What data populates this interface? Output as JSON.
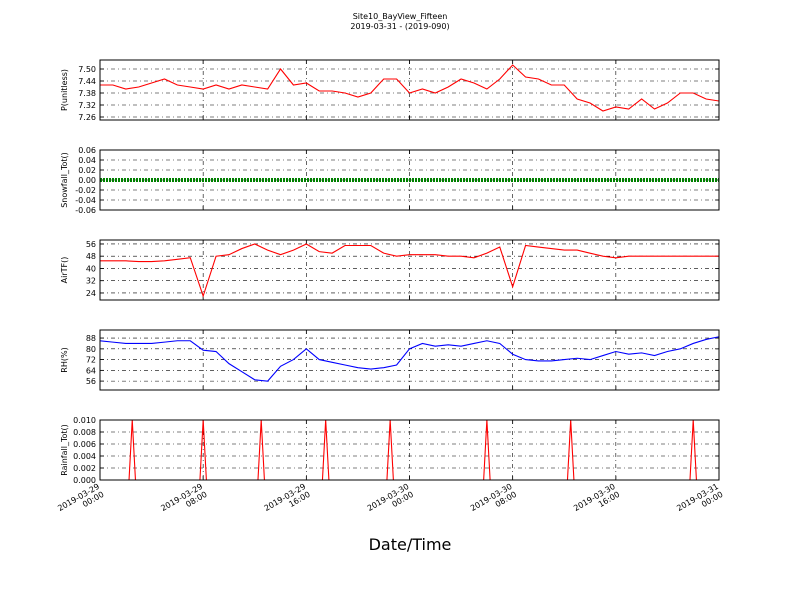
{
  "chart_data": [
    {
      "type": "line",
      "title": "Site10_BayView_Fifteen",
      "subtitle": "2019-03-31 - (2019-090)",
      "ylabel": "P(unitless)",
      "color": "#ff0000",
      "x": [
        "2019-03-29 00:00",
        "2019-03-29 01:00",
        "2019-03-29 02:00",
        "2019-03-29 03:00",
        "2019-03-29 04:00",
        "2019-03-29 05:00",
        "2019-03-29 06:00",
        "2019-03-29 07:00",
        "2019-03-29 08:00",
        "2019-03-29 09:00",
        "2019-03-29 10:00",
        "2019-03-29 11:00",
        "2019-03-29 12:00",
        "2019-03-29 13:00",
        "2019-03-29 14:00",
        "2019-03-29 15:00",
        "2019-03-29 16:00",
        "2019-03-29 17:00",
        "2019-03-29 18:00",
        "2019-03-29 19:00",
        "2019-03-29 20:00",
        "2019-03-29 21:00",
        "2019-03-29 22:00",
        "2019-03-29 23:00",
        "2019-03-30 00:00",
        "2019-03-30 01:00",
        "2019-03-30 02:00",
        "2019-03-30 03:00",
        "2019-03-30 04:00",
        "2019-03-30 05:00",
        "2019-03-30 06:00",
        "2019-03-30 07:00",
        "2019-03-30 08:00",
        "2019-03-30 09:00",
        "2019-03-30 10:00",
        "2019-03-30 11:00",
        "2019-03-30 12:00",
        "2019-03-30 13:00",
        "2019-03-30 14:00",
        "2019-03-30 15:00",
        "2019-03-30 16:00",
        "2019-03-30 17:00",
        "2019-03-30 18:00",
        "2019-03-30 19:00",
        "2019-03-30 20:00",
        "2019-03-30 21:00",
        "2019-03-30 22:00",
        "2019-03-30 23:00",
        "2019-03-31 00:00"
      ],
      "values": [
        7.42,
        7.42,
        7.4,
        7.41,
        7.43,
        7.45,
        7.42,
        7.41,
        7.4,
        7.42,
        7.4,
        7.42,
        7.41,
        7.4,
        7.5,
        7.42,
        7.43,
        7.39,
        7.39,
        7.38,
        7.36,
        7.38,
        7.45,
        7.45,
        7.38,
        7.4,
        7.38,
        7.41,
        7.45,
        7.43,
        7.4,
        7.45,
        7.52,
        7.46,
        7.45,
        7.42,
        7.42,
        7.35,
        7.33,
        7.29,
        7.31,
        7.3,
        7.35,
        7.3,
        7.33,
        7.38,
        7.38,
        7.35,
        7.34
      ],
      "xlim": [
        "2019-03-29 00:00",
        "2019-03-31 00:00"
      ],
      "xticks": [
        "2019-03-29 00:00",
        "2019-03-29 08:00",
        "2019-03-29 16:00",
        "2019-03-30 00:00",
        "2019-03-30 08:00",
        "2019-03-30 16:00",
        "2019-03-31 00:00"
      ],
      "ylim": [
        7.245,
        7.545
      ],
      "yticks": [
        7.26,
        7.32,
        7.38,
        7.44,
        {
          "value": 7.5,
          "label": "7.50"
        }
      ],
      "grid": true
    },
    {
      "type": "line",
      "ylabel": "Snowfall_Tot()",
      "color": "#008000",
      "x": [
        "2019-03-29 00:00",
        "2019-03-29 01:00",
        "2019-03-29 02:00",
        "2019-03-29 03:00",
        "2019-03-29 04:00",
        "2019-03-29 05:00",
        "2019-03-29 06:00",
        "2019-03-29 07:00",
        "2019-03-29 08:00",
        "2019-03-29 09:00",
        "2019-03-29 10:00",
        "2019-03-29 11:00",
        "2019-03-29 12:00",
        "2019-03-29 13:00",
        "2019-03-29 14:00",
        "2019-03-29 15:00",
        "2019-03-29 16:00",
        "2019-03-29 17:00",
        "2019-03-29 18:00",
        "2019-03-29 19:00",
        "2019-03-29 20:00",
        "2019-03-29 21:00",
        "2019-03-29 22:00",
        "2019-03-29 23:00",
        "2019-03-30 00:00",
        "2019-03-30 01:00",
        "2019-03-30 02:00",
        "2019-03-30 03:00",
        "2019-03-30 04:00",
        "2019-03-30 05:00",
        "2019-03-30 06:00",
        "2019-03-30 07:00",
        "2019-03-30 08:00",
        "2019-03-30 09:00",
        "2019-03-30 10:00",
        "2019-03-30 11:00",
        "2019-03-30 12:00",
        "2019-03-30 13:00",
        "2019-03-30 14:00",
        "2019-03-30 15:00",
        "2019-03-30 16:00",
        "2019-03-30 17:00",
        "2019-03-30 18:00",
        "2019-03-30 19:00",
        "2019-03-30 20:00",
        "2019-03-30 21:00",
        "2019-03-30 22:00",
        "2019-03-30 23:00",
        "2019-03-31 00:00"
      ],
      "values": [
        0,
        0,
        0,
        0,
        0,
        0,
        0,
        0,
        0,
        0,
        0,
        0,
        0,
        0,
        0,
        0,
        0,
        0,
        0,
        0,
        0,
        0,
        0,
        0,
        0,
        0,
        0,
        0,
        0,
        0,
        0,
        0,
        0,
        0,
        0,
        0,
        0,
        0,
        0,
        0,
        0,
        0,
        0,
        0,
        0,
        0,
        0,
        0,
        0
      ],
      "xlim": [
        "2019-03-29 00:00",
        "2019-03-31 00:00"
      ],
      "xticks": [
        "2019-03-29 00:00",
        "2019-03-29 08:00",
        "2019-03-29 16:00",
        "2019-03-30 00:00",
        "2019-03-30 08:00",
        "2019-03-30 16:00",
        "2019-03-31 00:00"
      ],
      "ylim": [
        -0.06,
        0.06
      ],
      "yticks": [
        -0.06,
        -0.04,
        -0.02,
        {
          "value": 0,
          "label": "0.00"
        },
        0.02,
        0.04,
        0.06
      ],
      "grid": true
    },
    {
      "type": "line",
      "ylabel": "AirTF()",
      "color": "#ff0000",
      "x": [
        "2019-03-29 00:00",
        "2019-03-29 01:00",
        "2019-03-29 02:00",
        "2019-03-29 03:00",
        "2019-03-29 04:00",
        "2019-03-29 05:00",
        "2019-03-29 06:00",
        "2019-03-29 07:00",
        "2019-03-29 08:00",
        "2019-03-29 09:00",
        "2019-03-29 10:00",
        "2019-03-29 11:00",
        "2019-03-29 12:00",
        "2019-03-29 13:00",
        "2019-03-29 14:00",
        "2019-03-29 15:00",
        "2019-03-29 16:00",
        "2019-03-29 17:00",
        "2019-03-29 18:00",
        "2019-03-29 19:00",
        "2019-03-29 20:00",
        "2019-03-29 21:00",
        "2019-03-29 22:00",
        "2019-03-29 23:00",
        "2019-03-30 00:00",
        "2019-03-30 01:00",
        "2019-03-30 02:00",
        "2019-03-30 03:00",
        "2019-03-30 04:00",
        "2019-03-30 05:00",
        "2019-03-30 06:00",
        "2019-03-30 07:00",
        "2019-03-30 08:00",
        "2019-03-30 09:00",
        "2019-03-30 10:00",
        "2019-03-30 11:00",
        "2019-03-30 12:00",
        "2019-03-30 13:00",
        "2019-03-30 14:00",
        "2019-03-30 15:00",
        "2019-03-30 16:00",
        "2019-03-30 17:00",
        "2019-03-30 18:00",
        "2019-03-30 19:00",
        "2019-03-30 20:00",
        "2019-03-30 21:00",
        "2019-03-30 22:00",
        "2019-03-30 23:00",
        "2019-03-31 00:00"
      ],
      "values": [
        45,
        45,
        45,
        44.5,
        44.5,
        45,
        46,
        47,
        22,
        48,
        49,
        53,
        56,
        52,
        49,
        52,
        56,
        51,
        50,
        55,
        55,
        55,
        50,
        48,
        49,
        49,
        49,
        48,
        48,
        47,
        50,
        54,
        28,
        55,
        54,
        53,
        52,
        52,
        50,
        48,
        47,
        48,
        48,
        48,
        48,
        48,
        48,
        48,
        48
      ],
      "xlim": [
        "2019-03-29 00:00",
        "2019-03-31 00:00"
      ],
      "xticks": [
        "2019-03-29 00:00",
        "2019-03-29 08:00",
        "2019-03-29 16:00",
        "2019-03-30 00:00",
        "2019-03-30 08:00",
        "2019-03-30 16:00",
        "2019-03-31 00:00"
      ],
      "ylim": [
        19.4,
        58.6
      ],
      "yticks": [
        24,
        32,
        40,
        48,
        56
      ],
      "grid": true
    },
    {
      "type": "line",
      "ylabel": "RH(%)",
      "color": "#0000ff",
      "x": [
        "2019-03-29 00:00",
        "2019-03-29 01:00",
        "2019-03-29 02:00",
        "2019-03-29 03:00",
        "2019-03-29 04:00",
        "2019-03-29 05:00",
        "2019-03-29 06:00",
        "2019-03-29 07:00",
        "2019-03-29 08:00",
        "2019-03-29 09:00",
        "2019-03-29 10:00",
        "2019-03-29 11:00",
        "2019-03-29 12:00",
        "2019-03-29 13:00",
        "2019-03-29 14:00",
        "2019-03-29 15:00",
        "2019-03-29 16:00",
        "2019-03-29 17:00",
        "2019-03-29 18:00",
        "2019-03-29 19:00",
        "2019-03-29 20:00",
        "2019-03-29 21:00",
        "2019-03-29 22:00",
        "2019-03-29 23:00",
        "2019-03-30 00:00",
        "2019-03-30 01:00",
        "2019-03-30 02:00",
        "2019-03-30 03:00",
        "2019-03-30 04:00",
        "2019-03-30 05:00",
        "2019-03-30 06:00",
        "2019-03-30 07:00",
        "2019-03-30 08:00",
        "2019-03-30 09:00",
        "2019-03-30 10:00",
        "2019-03-30 11:00",
        "2019-03-30 12:00",
        "2019-03-30 13:00",
        "2019-03-30 14:00",
        "2019-03-30 15:00",
        "2019-03-30 16:00",
        "2019-03-30 17:00",
        "2019-03-30 18:00",
        "2019-03-30 19:00",
        "2019-03-30 20:00",
        "2019-03-30 21:00",
        "2019-03-30 22:00",
        "2019-03-30 23:00",
        "2019-03-31 00:00"
      ],
      "values": [
        86,
        85,
        84,
        84,
        84,
        85,
        86,
        86,
        79,
        78,
        69,
        63,
        57,
        56,
        67,
        72,
        80,
        72,
        70,
        68,
        66,
        65,
        66,
        68,
        80,
        84,
        82,
        83,
        82,
        84,
        86,
        84,
        76,
        72,
        71,
        71,
        72,
        73,
        72,
        75,
        78,
        76,
        77,
        75,
        78,
        80,
        84,
        87,
        89
      ],
      "xlim": [
        "2019-03-29 00:00",
        "2019-03-31 00:00"
      ],
      "xticks": [
        "2019-03-29 00:00",
        "2019-03-29 08:00",
        "2019-03-29 16:00",
        "2019-03-30 00:00",
        "2019-03-30 08:00",
        "2019-03-30 16:00",
        "2019-03-31 00:00"
      ],
      "ylim": [
        49.4,
        94
      ],
      "yticks": [
        56,
        64,
        72,
        80,
        88
      ],
      "grid": true
    },
    {
      "type": "line",
      "ylabel": "Rainfall_Tot()",
      "xlabel": "Date/Time",
      "color": "#ff0000",
      "x": [
        "2019-03-29 00:00",
        "2019-03-29 02:15",
        "2019-03-29 02:30",
        "2019-03-29 02:45",
        "2019-03-29 07:45",
        "2019-03-29 08:00",
        "2019-03-29 08:15",
        "2019-03-29 12:15",
        "2019-03-29 12:30",
        "2019-03-29 12:45",
        "2019-03-29 17:15",
        "2019-03-29 17:30",
        "2019-03-29 17:45",
        "2019-03-29 22:15",
        "2019-03-29 22:30",
        "2019-03-29 22:45",
        "2019-03-30 05:45",
        "2019-03-30 06:00",
        "2019-03-30 06:15",
        "2019-03-30 12:15",
        "2019-03-30 12:30",
        "2019-03-30 12:45",
        "2019-03-30 21:45",
        "2019-03-30 22:00",
        "2019-03-30 22:15",
        "2019-03-31 00:00"
      ],
      "values": [
        0,
        0,
        0.01,
        0,
        0,
        0.01,
        0,
        0,
        0.01,
        0,
        0,
        0.01,
        0,
        0,
        0.01,
        0,
        0,
        0.01,
        0,
        0,
        0.01,
        0,
        0,
        0.01,
        0,
        0
      ],
      "xlim": [
        "2019-03-29 00:00",
        "2019-03-31 00:00"
      ],
      "xticks": [
        "2019-03-29 00:00",
        "2019-03-29 08:00",
        "2019-03-29 16:00",
        "2019-03-30 00:00",
        "2019-03-30 08:00",
        "2019-03-30 16:00",
        "2019-03-31 00:00"
      ],
      "ylim": [
        0,
        0.01
      ],
      "yticks": [
        {
          "value": 0,
          "label": "0.000"
        },
        {
          "value": 0.002,
          "label": "0.002"
        },
        {
          "value": 0.004,
          "label": "0.004"
        },
        {
          "value": 0.006,
          "label": "0.006"
        },
        {
          "value": 0.008,
          "label": "0.008"
        },
        {
          "value": 0.01,
          "label": "0.010"
        }
      ],
      "grid": true,
      "show_xtick_labels": true
    }
  ]
}
